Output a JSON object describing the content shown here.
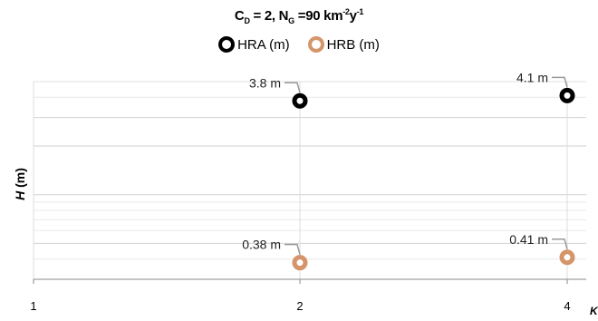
{
  "title": {
    "c_symbol": "C",
    "c_sub": "D",
    "c_value": " = 2, ",
    "n_symbol": "N",
    "n_sub": "G",
    "n_value": " =90  km",
    "km_sup": "-2",
    "year": "y",
    "y_sup": "-1"
  },
  "chart_data": {
    "type": "scatter",
    "xlabel": "K",
    "ylabel": "H (m)",
    "x_ticks": [
      "1",
      "2",
      "4"
    ],
    "y_scale": "log",
    "ylim": [
      0.3,
      5.0
    ],
    "grid": true,
    "legend_position": "top-center",
    "series": [
      {
        "name": "HRA (m)",
        "color": "#000000",
        "points": [
          {
            "x": 2,
            "y": 3.8,
            "label": "3.8 m"
          },
          {
            "x": 4,
            "y": 4.1,
            "label": "4.1 m"
          }
        ]
      },
      {
        "name": "HRB (m)",
        "color": "#d4956a",
        "points": [
          {
            "x": 2,
            "y": 0.38,
            "label": "0.38 m"
          },
          {
            "x": 4,
            "y": 0.41,
            "label": "0.41 m"
          }
        ]
      }
    ]
  }
}
